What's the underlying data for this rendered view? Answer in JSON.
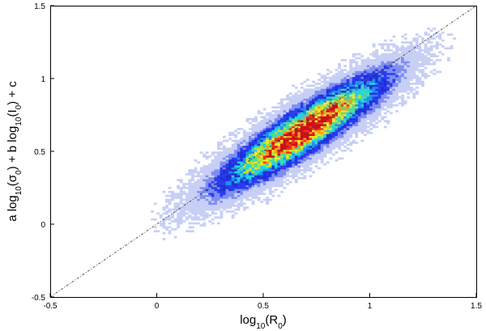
{
  "chart_data": {
    "type": "heatmap",
    "title": "",
    "xlabel": "log10(R0)",
    "ylabel": "a log10(σ0) + b log10(I0) + c",
    "xlim": [
      -0.5,
      1.5
    ],
    "ylim": [
      -0.5,
      1.5
    ],
    "x_ticks": [
      "-0.5",
      "0",
      "0.5",
      "1",
      "1.5"
    ],
    "y_ticks": [
      "-0.5",
      "0",
      "0.5",
      "1",
      "1.5"
    ],
    "grid": false,
    "reference_line": {
      "style": "dash-dot",
      "from": [
        -0.5,
        -0.5
      ],
      "to": [
        1.5,
        1.5
      ]
    },
    "density_distribution": {
      "center": [
        0.68,
        0.63
      ],
      "major_axis_slope": 1.0,
      "sigma_along": 0.33,
      "sigma_across": 0.075,
      "peak_region": [
        0.55,
        0.8
      ]
    },
    "colormap": [
      "#ffffff",
      "#c8cff5",
      "#7f8ef0",
      "#2a3cf0",
      "#1f2fd6",
      "#1f8ef0",
      "#22d0e8",
      "#4cdc9a",
      "#b5e23a",
      "#f0e62a",
      "#f79a1e",
      "#e8331a",
      "#c8101a"
    ]
  }
}
